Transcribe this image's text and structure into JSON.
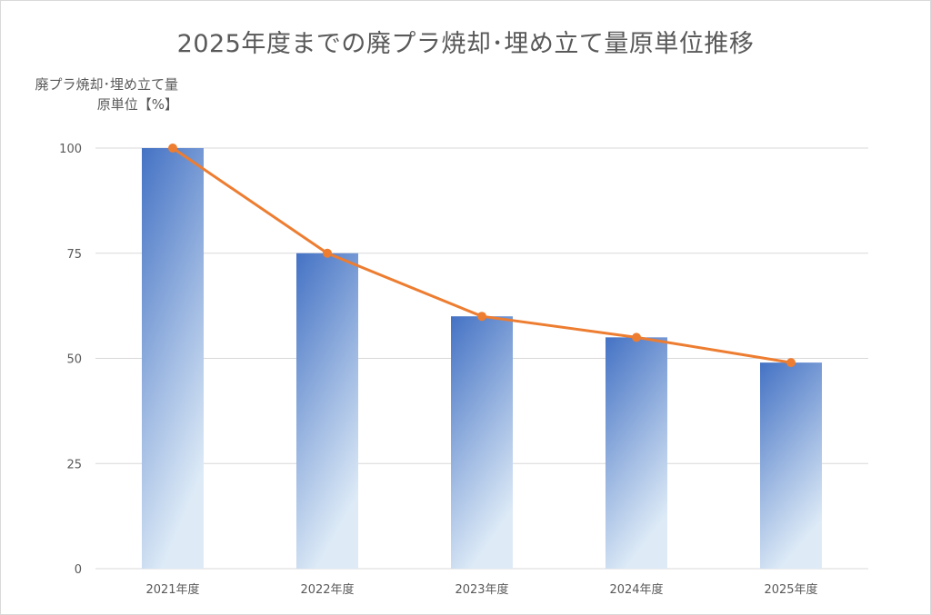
{
  "chart_data": {
    "type": "bar",
    "title": "2025年度までの廃プラ焼却･埋め立て量原単位推移",
    "ylabel_line1": "廃プラ焼却･埋め立て量",
    "ylabel_line2": "原単位【%】",
    "categories": [
      "2021年度",
      "2022年度",
      "2023年度",
      "2024年度",
      "2025年度"
    ],
    "series": [
      {
        "type": "bar",
        "values": [
          100,
          75,
          60,
          55,
          49
        ]
      },
      {
        "type": "line",
        "values": [
          100,
          75,
          60,
          55,
          49
        ]
      }
    ],
    "ylim": [
      0,
      100
    ],
    "yticks": [
      0,
      25,
      50,
      75,
      100
    ],
    "grid": true,
    "legend": "none",
    "colors": {
      "bar_top": "#4472c4",
      "bar_bottom": "#deebf7",
      "line": "#ed7d31",
      "grid": "#d9d9d9"
    }
  }
}
